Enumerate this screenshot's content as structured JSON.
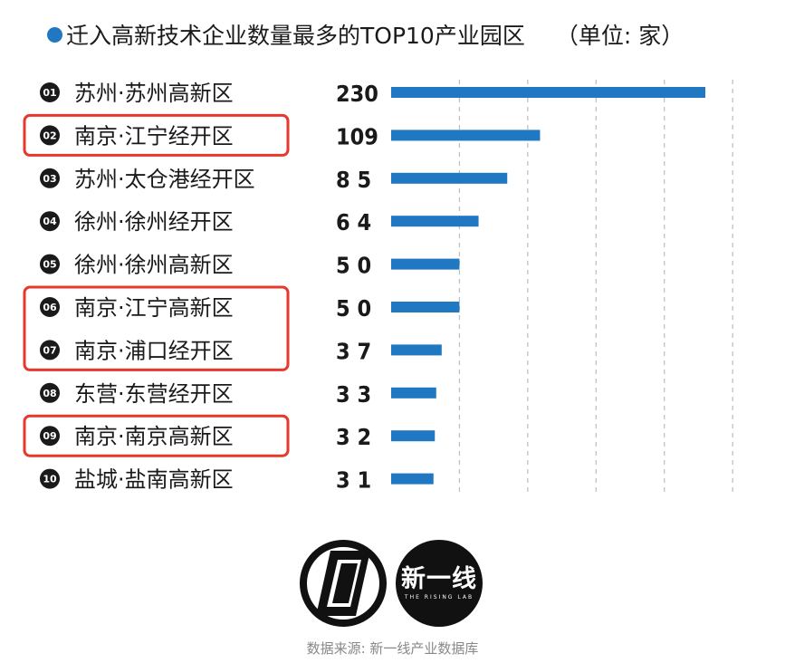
{
  "title": "迁入高新技术企业数量最多的TOP10产业园区",
  "unit": "（单位: 家）",
  "source": "数据来源: 新一线产业数据库",
  "logo_text": "新一线",
  "logo_subtext": "THE RISING LAB",
  "colors": {
    "bar": "#1f78c1",
    "highlight": "#e8372c",
    "grid": "#bdbdbd"
  },
  "chart_data": {
    "type": "bar",
    "orientation": "horizontal",
    "ranks": [
      "01",
      "02",
      "03",
      "04",
      "05",
      "06",
      "07",
      "08",
      "09",
      "10"
    ],
    "categories": [
      "苏州·苏州高新区",
      "南京·江宁经开区",
      "苏州·太仓港经开区",
      "徐州·徐州经开区",
      "徐州·徐州高新区",
      "南京·江宁高新区",
      "南京·浦口经开区",
      "东营·东营经开区",
      "南京·南京高新区",
      "盐城·盐南高新区"
    ],
    "values": [
      230,
      109,
      85,
      64,
      50,
      50,
      37,
      33,
      32,
      31
    ],
    "value_labels": [
      "230",
      "109",
      "8 5",
      "6 4",
      "5 0",
      "5 0",
      "3 7",
      "3 3",
      "3 2",
      "3 1"
    ],
    "xlim": [
      0,
      250
    ],
    "grid": true,
    "highlighted_groups": [
      [
        1
      ],
      [
        5,
        6
      ],
      [
        8
      ]
    ]
  }
}
